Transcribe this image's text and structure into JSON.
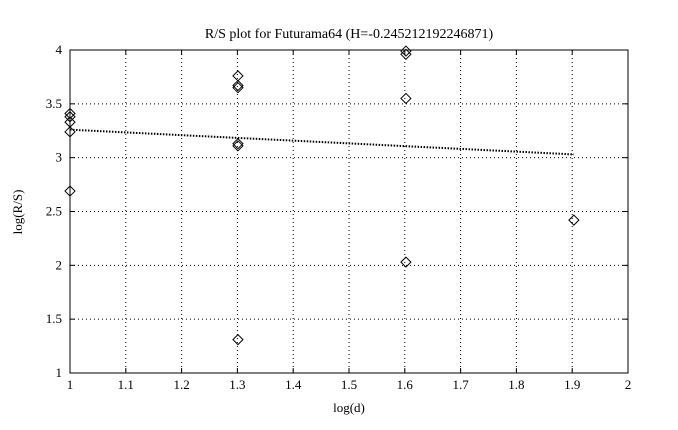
{
  "chart_data": {
    "type": "scatter",
    "title": "R/S plot for Futurama64 (H=-0.245212192246871)",
    "xlabel": "log(d)",
    "ylabel": "log(R/S)",
    "xlim": [
      1,
      2
    ],
    "ylim": [
      1,
      4
    ],
    "x_ticks": [
      "1",
      "1.1",
      "1.2",
      "1.3",
      "1.4",
      "1.5",
      "1.6",
      "1.7",
      "1.8",
      "1.9",
      "2"
    ],
    "y_ticks": [
      "1",
      "1.5",
      "2",
      "2.5",
      "3",
      "3.5",
      "4"
    ],
    "grid": true,
    "marker": "diamond",
    "series": [
      {
        "points": [
          {
            "x": 1.0,
            "y": 3.41
          },
          {
            "x": 1.0,
            "y": 3.38
          },
          {
            "x": 1.0,
            "y": 3.33
          },
          {
            "x": 1.0,
            "y": 3.24
          },
          {
            "x": 1.0,
            "y": 2.69
          },
          {
            "x": 1.301,
            "y": 3.76
          },
          {
            "x": 1.301,
            "y": 3.67
          },
          {
            "x": 1.301,
            "y": 3.65
          },
          {
            "x": 1.301,
            "y": 3.13
          },
          {
            "x": 1.301,
            "y": 3.11
          },
          {
            "x": 1.301,
            "y": 1.31
          },
          {
            "x": 1.602,
            "y": 3.99
          },
          {
            "x": 1.602,
            "y": 3.96
          },
          {
            "x": 1.602,
            "y": 3.55
          },
          {
            "x": 1.602,
            "y": 2.03
          },
          {
            "x": 1.903,
            "y": 2.42
          }
        ]
      }
    ],
    "fit_line": {
      "style": "dotted",
      "x": [
        1.0,
        1.903
      ],
      "y": [
        3.26,
        3.03
      ]
    }
  }
}
